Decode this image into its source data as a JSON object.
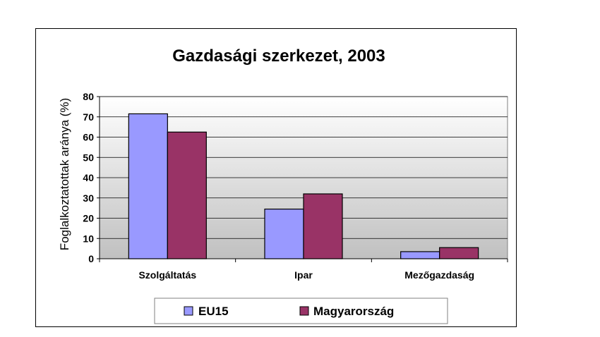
{
  "chart_data": {
    "type": "bar",
    "title": "Gazdasági szerkezet, 2003",
    "xlabel": "",
    "ylabel": "Foglalkoztatottak aránya (%)",
    "categories": [
      "Szolgáltatás",
      "Ipar",
      "Mezőgazdaság"
    ],
    "series": [
      {
        "name": "EU15",
        "values": [
          71.5,
          24.5,
          3.5
        ],
        "color": "#9999ff"
      },
      {
        "name": "Magyarország",
        "values": [
          62.5,
          32,
          5.5
        ],
        "color": "#993366"
      }
    ],
    "ylim": [
      0,
      80
    ],
    "yticks": [
      "0",
      "10",
      "20",
      "30",
      "40",
      "50",
      "60",
      "70",
      "80"
    ],
    "grid": true,
    "legend_position": "bottom",
    "plot_background": "gradient white to gray"
  }
}
